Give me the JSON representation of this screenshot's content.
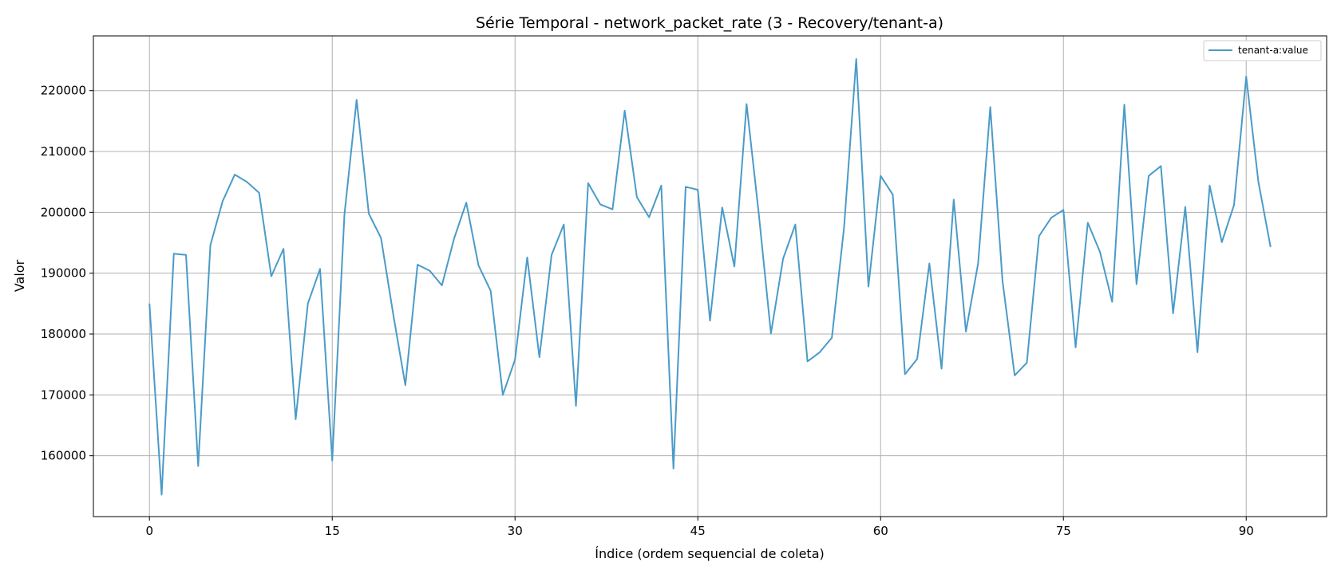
{
  "chart_data": {
    "type": "line",
    "title": "Série Temporal - network_packet_rate (3 - Recovery/tenant-a)",
    "xlabel": "Índice (ordem sequencial de coleta)",
    "ylabel": "Valor",
    "xlim": [
      -4.6,
      96.6
    ],
    "ylim": [
      150000,
      229000
    ],
    "xticks": [
      0,
      15,
      30,
      45,
      60,
      75,
      90
    ],
    "yticks": [
      160000,
      170000,
      180000,
      190000,
      200000,
      210000,
      220000
    ],
    "grid": true,
    "legend_position": "top-right",
    "series": [
      {
        "name": "tenant-a:value",
        "color": "#4a9bc9",
        "x": [
          0,
          1,
          2,
          3,
          4,
          5,
          6,
          7,
          8,
          9,
          10,
          11,
          12,
          13,
          14,
          15,
          16,
          17,
          18,
          19,
          20,
          21,
          22,
          23,
          24,
          25,
          26,
          27,
          28,
          29,
          30,
          31,
          32,
          33,
          34,
          35,
          36,
          37,
          38,
          39,
          40,
          41,
          42,
          43,
          44,
          45,
          46,
          47,
          48,
          49,
          50,
          51,
          52,
          53,
          54,
          55,
          56,
          57,
          58,
          59,
          60,
          61,
          62,
          63,
          64,
          65,
          66,
          67,
          68,
          69,
          70,
          71,
          72,
          73,
          74,
          75,
          76,
          77,
          78,
          79,
          80,
          81,
          82,
          83,
          84,
          85,
          86,
          87,
          88,
          89,
          90,
          91,
          92
        ],
        "y": [
          185000,
          153600,
          193200,
          193000,
          158300,
          194600,
          201800,
          206200,
          205000,
          203200,
          189500,
          194000,
          166000,
          185000,
          190700,
          159200,
          199600,
          218500,
          199800,
          195800,
          183300,
          171600,
          191400,
          190400,
          188000,
          195700,
          201600,
          191300,
          187100,
          170000,
          175800,
          192600,
          176200,
          193000,
          198000,
          168200,
          204800,
          201300,
          200500,
          216700,
          202500,
          199200,
          204400,
          157900,
          204200,
          203700,
          182200,
          200800,
          191100,
          217800,
          199800,
          180100,
          192400,
          198000,
          175500,
          177000,
          179400,
          197500,
          225200,
          187800,
          206000,
          202900,
          173400,
          175900,
          191600,
          174300,
          202100,
          180400,
          191600,
          217300,
          188800,
          173200,
          175300,
          196100,
          199100,
          200400,
          177800,
          198300,
          193500,
          185300,
          217700,
          188200,
          206000,
          207600,
          183400,
          200900,
          177000,
          204400,
          195100,
          201200,
          222300,
          205000,
          194300
        ]
      }
    ]
  }
}
